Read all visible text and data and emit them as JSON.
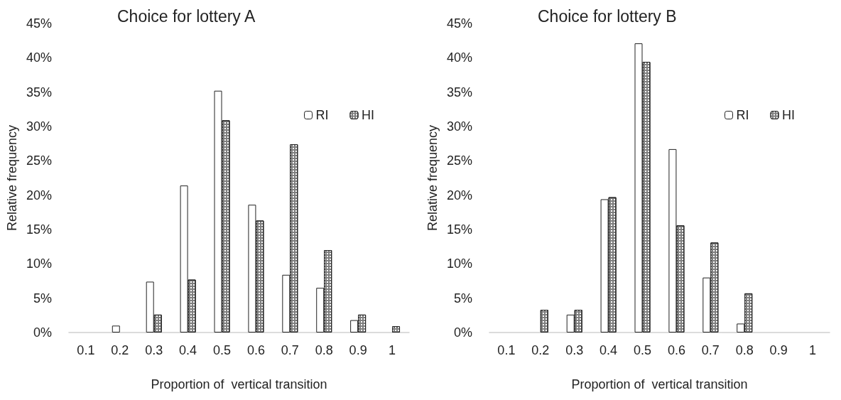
{
  "chart_data": [
    {
      "type": "bar",
      "title": "Choice for lottery A",
      "xlabel": "Proportion of  vertical transition",
      "ylabel": "Relative frequency",
      "categories": [
        "0.1",
        "0.2",
        "0.3",
        "0.4",
        "0.5",
        "0.6",
        "0.7",
        "0.8",
        "0.9",
        "1"
      ],
      "series": [
        {
          "name": "RI",
          "color": "#ffffff",
          "values": [
            0,
            1.0,
            7.4,
            21.4,
            35.2,
            18.6,
            8.4,
            6.5,
            1.8,
            0
          ]
        },
        {
          "name": "HI",
          "color": "#7f7f7f",
          "values": [
            0,
            0,
            2.6,
            7.7,
            30.9,
            16.3,
            27.4,
            12.0,
            2.6,
            0.9
          ]
        }
      ],
      "ylim": [
        0,
        45
      ],
      "yticks": [
        {
          "value": 0,
          "label": "0%"
        },
        {
          "value": 5,
          "label": "5%"
        },
        {
          "value": 10,
          "label": "10%"
        },
        {
          "value": 15,
          "label": "15%"
        },
        {
          "value": 20,
          "label": "20%"
        },
        {
          "value": 25,
          "label": "25%"
        },
        {
          "value": 30,
          "label": "30%"
        },
        {
          "value": 35,
          "label": "35%"
        },
        {
          "value": 40,
          "label": "40%"
        },
        {
          "value": 45,
          "label": "45%"
        }
      ],
      "grid": false,
      "legend": "top right"
    },
    {
      "type": "bar",
      "title": "Choice for lottery B",
      "xlabel": "Proportion of  vertical transition",
      "ylabel": "Relative frequency",
      "categories": [
        "0.1",
        "0.2",
        "0.3",
        "0.4",
        "0.5",
        "0.6",
        "0.7",
        "0.8",
        "0.9",
        "1"
      ],
      "series": [
        {
          "name": "RI",
          "color": "#ffffff",
          "values": [
            0,
            0,
            2.6,
            19.4,
            42.1,
            26.7,
            8.0,
            1.3,
            0,
            0
          ]
        },
        {
          "name": "HI",
          "color": "#7f7f7f",
          "values": [
            0,
            3.3,
            3.3,
            19.7,
            39.4,
            15.6,
            13.1,
            5.7,
            0,
            0
          ]
        }
      ],
      "ylim": [
        0,
        45
      ],
      "yticks": [
        {
          "value": 0,
          "label": "0%"
        },
        {
          "value": 5,
          "label": "5%"
        },
        {
          "value": 10,
          "label": "10%"
        },
        {
          "value": 15,
          "label": "15%"
        },
        {
          "value": 20,
          "label": "20%"
        },
        {
          "value": 25,
          "label": "25%"
        },
        {
          "value": 30,
          "label": "30%"
        },
        {
          "value": 35,
          "label": "35%"
        },
        {
          "value": 40,
          "label": "40%"
        },
        {
          "value": 45,
          "label": "45%"
        }
      ],
      "grid": false,
      "legend": "top right"
    }
  ]
}
